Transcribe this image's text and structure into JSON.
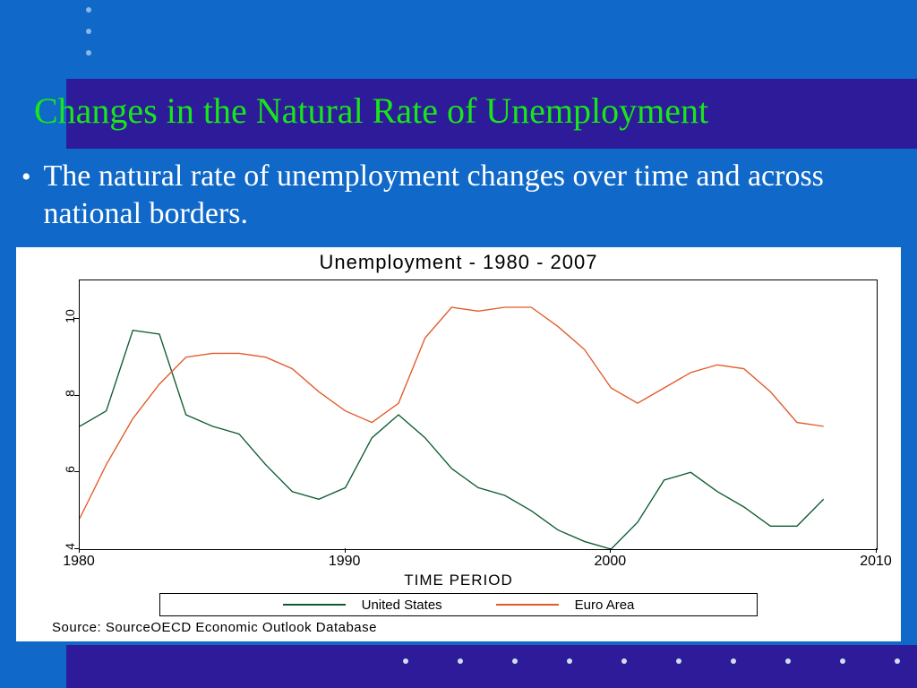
{
  "slide": {
    "background_color": "#1069c9",
    "accent_color": "#2d1b9a",
    "title_color": "#19e619",
    "body_text_color": "#ffffff",
    "dot_color": "#8bb8e8"
  },
  "title": "Changes in the Natural Rate of Unemployment",
  "bullet": "The natural rate of unemployment changes over time and across national borders.",
  "chart": {
    "type": "line",
    "title": "Unemployment - 1980 - 2007",
    "title_fontsize": 22,
    "panel_background": "#ffffff",
    "plot_border_color": "#000000",
    "xlabel": "TIME PERIOD",
    "label_fontsize": 17,
    "xlim": [
      1980,
      2010
    ],
    "xticks": [
      1980,
      1990,
      2000,
      2010
    ],
    "ylim": [
      4,
      11
    ],
    "yticks": [
      4,
      6,
      8,
      10
    ],
    "tick_fontsize": 15,
    "line_width": 1.35,
    "series": [
      {
        "name": "United States",
        "color": "#0d5c2f",
        "x": [
          1980,
          1981,
          1982,
          1983,
          1984,
          1985,
          1986,
          1987,
          1988,
          1989,
          1990,
          1991,
          1992,
          1993,
          1994,
          1995,
          1996,
          1997,
          1998,
          1999,
          2000,
          2001,
          2002,
          2003,
          2004,
          2005,
          2006,
          2007,
          2008
        ],
        "y": [
          7.2,
          7.6,
          9.7,
          9.6,
          7.5,
          7.2,
          7.0,
          6.2,
          5.5,
          5.3,
          5.6,
          6.9,
          7.5,
          6.9,
          6.1,
          5.6,
          5.4,
          5.0,
          4.5,
          4.2,
          4.0,
          4.7,
          5.8,
          6.0,
          5.5,
          5.1,
          4.6,
          4.6,
          5.3
        ]
      },
      {
        "name": "Euro Area",
        "color": "#e25a2b",
        "x": [
          1980,
          1981,
          1982,
          1983,
          1984,
          1985,
          1986,
          1987,
          1988,
          1989,
          1990,
          1991,
          1992,
          1993,
          1994,
          1995,
          1996,
          1997,
          1998,
          1999,
          2000,
          2001,
          2002,
          2003,
          2004,
          2005,
          2006,
          2007,
          2008
        ],
        "y": [
          4.8,
          6.2,
          7.4,
          8.3,
          9.0,
          9.1,
          9.1,
          9.0,
          8.7,
          8.1,
          7.6,
          7.3,
          7.8,
          9.5,
          10.3,
          10.2,
          10.3,
          10.3,
          9.8,
          9.2,
          8.2,
          7.8,
          8.2,
          8.6,
          8.8,
          8.7,
          8.1,
          7.3,
          7.2
        ]
      }
    ],
    "legend": {
      "border_color": "#000000",
      "items": [
        "United States",
        "Euro Area"
      ]
    },
    "source": "Source: SourceOECD Economic Outlook Database"
  }
}
